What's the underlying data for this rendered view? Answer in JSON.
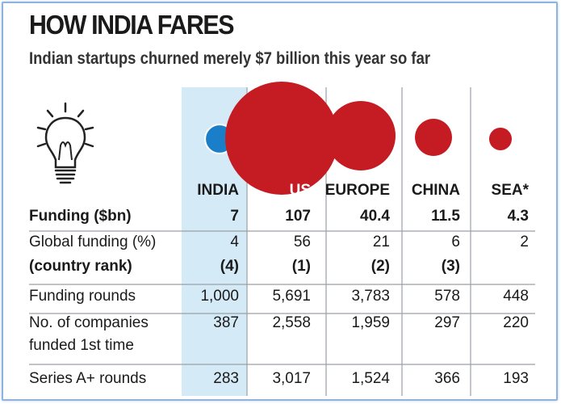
{
  "title": "HOW INDIA FARES",
  "subtitle": "Indian startups churned merely $7 billion this year so far",
  "icon": "lightbulb-icon",
  "colors": {
    "india_bubble": "#1a7fc8",
    "other_bubble": "#c51b23",
    "india_column": "#d5eaf7",
    "grid": "#9aa0a6"
  },
  "columns": [
    "INDIA",
    "US",
    "EUROPE",
    "CHINA",
    "SEA*"
  ],
  "rows": [
    {
      "label": "Funding ($bn)",
      "bold": true,
      "values": [
        "7",
        "107",
        "40.4",
        "11.5",
        "4.3"
      ]
    },
    {
      "label": "Global funding (%)",
      "bold": false,
      "values": [
        "4",
        "56",
        "21",
        "6",
        "2"
      ]
    },
    {
      "label": "(country rank)",
      "bold": true,
      "values": [
        "(4)",
        "(1)",
        "(2)",
        "(3)",
        ""
      ]
    },
    {
      "label": "Funding rounds",
      "bold": false,
      "values": [
        "1,000",
        "5,691",
        "3,783",
        "578",
        "448"
      ]
    },
    {
      "label": "No. of companies",
      "bold": false,
      "values": [
        "387",
        "2,558",
        "1,959",
        "297",
        "220"
      ]
    },
    {
      "label": "funded 1st time",
      "bold": false,
      "values": [
        "",
        "",
        "",
        "",
        ""
      ]
    },
    {
      "label": "Series A+ rounds",
      "bold": false,
      "values": [
        "283",
        "3,017",
        "1,524",
        "366",
        "193"
      ]
    }
  ],
  "chart_data": {
    "type": "bubble",
    "categories": [
      "INDIA",
      "US",
      "EUROPE",
      "CHINA",
      "SEA*"
    ],
    "values": [
      7,
      107,
      40.4,
      11.5,
      4.3
    ]
  }
}
